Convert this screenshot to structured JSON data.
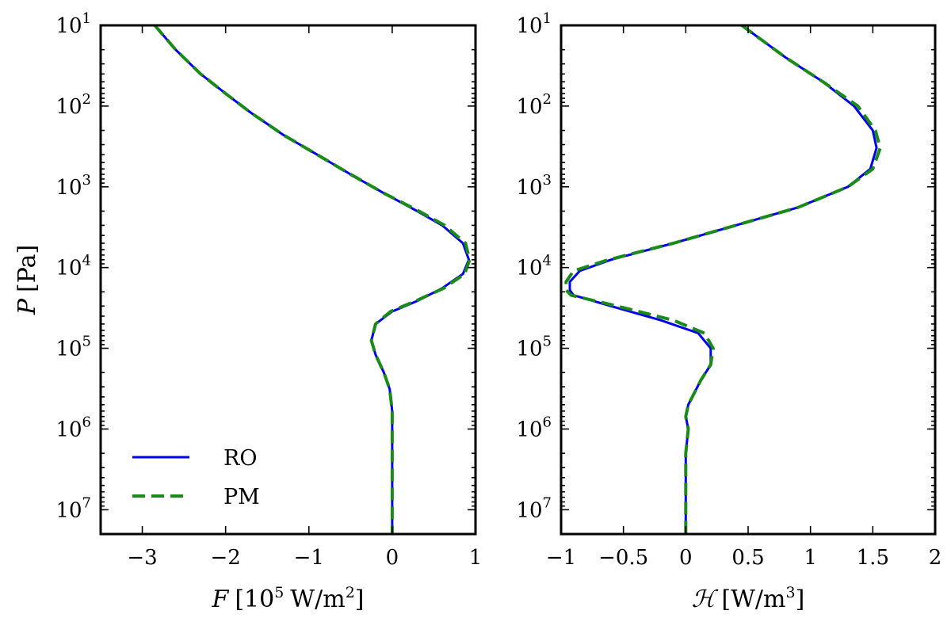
{
  "chart_data": [
    {
      "type": "line",
      "xlabel_parts": [
        "F",
        "[10",
        "5",
        "W/m",
        "2",
        "]"
      ],
      "ylabel_parts": [
        "P",
        "[Pa]"
      ],
      "xlim": [
        -3.5,
        1
      ],
      "ylim": [
        20000000,
        10
      ],
      "yscale": "log",
      "grid": false,
      "xticks": [
        -3,
        -2,
        -1,
        0,
        1
      ],
      "xtick_labels": [
        "−3",
        "−2",
        "−1",
        "0",
        "1"
      ],
      "yticks": [
        10,
        100,
        1000,
        10000,
        100000,
        1000000,
        10000000
      ],
      "ytick_labels": [
        {
          "base": "10",
          "exp": "1"
        },
        {
          "base": "10",
          "exp": "2"
        },
        {
          "base": "10",
          "exp": "3"
        },
        {
          "base": "10",
          "exp": "4"
        },
        {
          "base": "10",
          "exp": "5"
        },
        {
          "base": "10",
          "exp": "6"
        },
        {
          "base": "10",
          "exp": "7"
        }
      ],
      "legend": "lower-left",
      "series": [
        {
          "name": "RO",
          "color": "#0000ee",
          "style": "solid",
          "points": [
            [
              -2.85,
              10
            ],
            [
              -2.6,
              20
            ],
            [
              -2.3,
              40
            ],
            [
              -2.0,
              70
            ],
            [
              -1.7,
              120
            ],
            [
              -1.3,
              230
            ],
            [
              -0.9,
              400
            ],
            [
              -0.5,
              700
            ],
            [
              -0.1,
              1200
            ],
            [
              0.3,
              2000
            ],
            [
              0.6,
              3000
            ],
            [
              0.85,
              5000
            ],
            [
              0.92,
              8000
            ],
            [
              0.85,
              12000
            ],
            [
              0.6,
              18000
            ],
            [
              0.3,
              26000
            ],
            [
              0.0,
              35000
            ],
            [
              -0.2,
              50000
            ],
            [
              -0.25,
              80000
            ],
            [
              -0.2,
              120000
            ],
            [
              -0.1,
              200000
            ],
            [
              -0.03,
              320000
            ],
            [
              0.0,
              600000
            ],
            [
              0.0,
              1000000
            ],
            [
              0.0,
              3000000
            ],
            [
              0.0,
              20000000
            ]
          ]
        },
        {
          "name": "PM",
          "color": "#1a8a1a",
          "style": "dashed",
          "points": [
            [
              -2.85,
              10
            ],
            [
              -2.6,
              20
            ],
            [
              -2.3,
              40
            ],
            [
              -2.0,
              70
            ],
            [
              -1.7,
              120
            ],
            [
              -1.3,
              230
            ],
            [
              -0.9,
              400
            ],
            [
              -0.5,
              700
            ],
            [
              -0.1,
              1200
            ],
            [
              0.32,
              2000
            ],
            [
              0.63,
              3000
            ],
            [
              0.88,
              5000
            ],
            [
              0.93,
              8000
            ],
            [
              0.87,
              12000
            ],
            [
              0.62,
              18000
            ],
            [
              0.28,
              26000
            ],
            [
              -0.02,
              35000
            ],
            [
              -0.2,
              50000
            ],
            [
              -0.25,
              80000
            ],
            [
              -0.2,
              120000
            ],
            [
              -0.1,
              200000
            ],
            [
              -0.03,
              320000
            ],
            [
              0.0,
              600000
            ],
            [
              0.0,
              1000000
            ],
            [
              0.0,
              3000000
            ],
            [
              0.0,
              20000000
            ]
          ]
        }
      ]
    },
    {
      "type": "line",
      "xlabel_parts": [
        "ℋ",
        "[W/m",
        "3",
        "]"
      ],
      "ylabel_parts": [],
      "xlim": [
        -1,
        2
      ],
      "ylim": [
        20000000,
        10
      ],
      "yscale": "log",
      "grid": false,
      "xticks": [
        -1,
        -0.5,
        0,
        0.5,
        1,
        1.5,
        2
      ],
      "xtick_labels": [
        "−1",
        "−0.5",
        "0",
        "0.5",
        "1",
        "1.5",
        "2"
      ],
      "yticks": [
        10,
        100,
        1000,
        10000,
        100000,
        1000000,
        10000000
      ],
      "ytick_labels": [
        {
          "base": "10",
          "exp": "1"
        },
        {
          "base": "10",
          "exp": "2"
        },
        {
          "base": "10",
          "exp": "3"
        },
        {
          "base": "10",
          "exp": "4"
        },
        {
          "base": "10",
          "exp": "5"
        },
        {
          "base": "10",
          "exp": "6"
        },
        {
          "base": "10",
          "exp": "7"
        }
      ],
      "legend": "none",
      "series": [
        {
          "name": "RO",
          "color": "#0000ee",
          "style": "solid",
          "points": [
            [
              0.45,
              10
            ],
            [
              0.8,
              25
            ],
            [
              1.1,
              50
            ],
            [
              1.35,
              100
            ],
            [
              1.5,
              200
            ],
            [
              1.53,
              330
            ],
            [
              1.48,
              600
            ],
            [
              1.3,
              1000
            ],
            [
              0.9,
              1800
            ],
            [
              0.4,
              3000
            ],
            [
              -0.1,
              5000
            ],
            [
              -0.6,
              8000
            ],
            [
              -0.85,
              11000
            ],
            [
              -0.93,
              15000
            ],
            [
              -0.93,
              19000
            ],
            [
              -0.9,
              22000
            ],
            [
              -0.6,
              30000
            ],
            [
              -0.2,
              45000
            ],
            [
              0.1,
              65000
            ],
            [
              0.2,
              100000
            ],
            [
              0.2,
              160000
            ],
            [
              0.12,
              250000
            ],
            [
              0.02,
              500000
            ],
            [
              0.0,
              700000
            ],
            [
              0.02,
              1000000
            ],
            [
              0.0,
              2000000
            ],
            [
              0.0,
              20000000
            ]
          ]
        },
        {
          "name": "PM",
          "color": "#1a8a1a",
          "style": "dashed",
          "points": [
            [
              0.45,
              10
            ],
            [
              0.8,
              25
            ],
            [
              1.1,
              50
            ],
            [
              1.38,
              100
            ],
            [
              1.52,
              200
            ],
            [
              1.56,
              330
            ],
            [
              1.5,
              600
            ],
            [
              1.3,
              1000
            ],
            [
              0.9,
              1800
            ],
            [
              0.4,
              3000
            ],
            [
              -0.1,
              5000
            ],
            [
              -0.62,
              8000
            ],
            [
              -0.9,
              11000
            ],
            [
              -0.96,
              15000
            ],
            [
              -0.96,
              19000
            ],
            [
              -0.92,
              22000
            ],
            [
              -0.55,
              30000
            ],
            [
              -0.1,
              45000
            ],
            [
              0.15,
              65000
            ],
            [
              0.22,
              100000
            ],
            [
              0.2,
              160000
            ],
            [
              0.12,
              250000
            ],
            [
              0.02,
              500000
            ],
            [
              0.0,
              700000
            ],
            [
              0.02,
              1000000
            ],
            [
              0.0,
              2000000
            ],
            [
              0.0,
              20000000
            ]
          ]
        }
      ]
    }
  ]
}
